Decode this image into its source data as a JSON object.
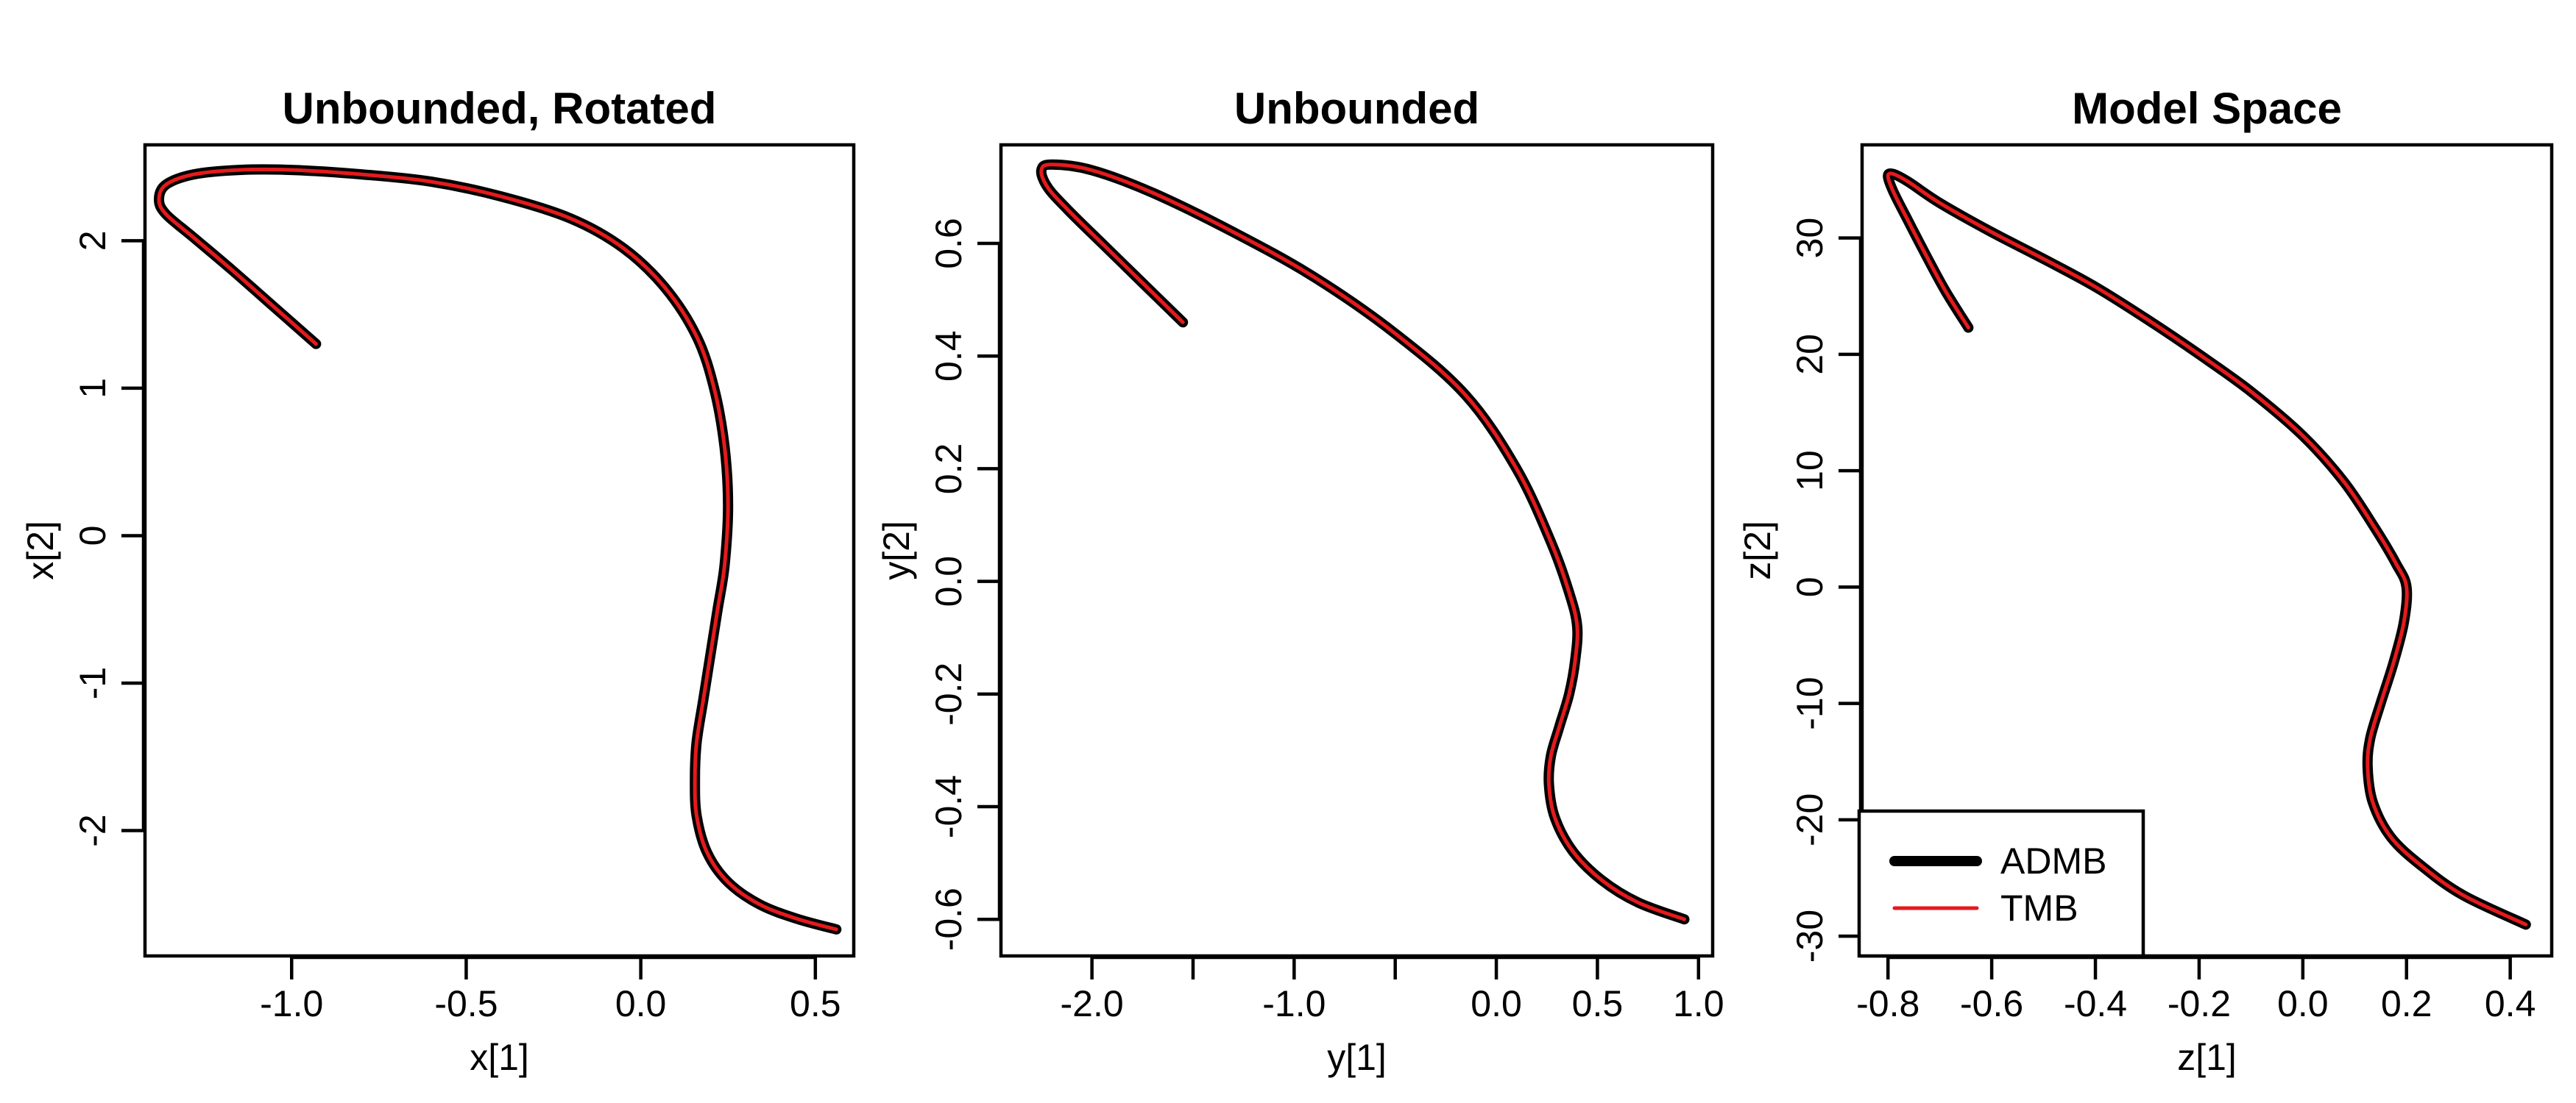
{
  "chart_data": [
    {
      "type": "line",
      "title": "Unbounded, Rotated",
      "xlabel": "x[1]",
      "ylabel": "x[2]",
      "xlim": [
        -1.42,
        0.61
      ],
      "ylim": [
        -2.85,
        2.65
      ],
      "xticks": [
        -1.0,
        -0.5,
        0.0,
        0.5
      ],
      "xtick_labels": [
        "-1.0",
        "-0.5",
        "0.0",
        "0.5"
      ],
      "yticks": [
        -2,
        -1,
        0,
        1,
        2
      ],
      "ytick_labels": [
        "-2",
        "-1",
        "0",
        "1",
        "2"
      ],
      "series": [
        {
          "name": "ADMB",
          "color": "#000000",
          "x": [
            -0.93,
            -1.05,
            -1.17,
            -1.28,
            -1.36,
            -1.38,
            -1.36,
            -1.28,
            -1.15,
            -1.0,
            -0.8,
            -0.6,
            -0.4,
            -0.2,
            -0.05,
            0.07,
            0.16,
            0.21,
            0.24,
            0.25,
            0.24,
            0.22,
            0.2,
            0.18,
            0.16,
            0.155,
            0.16,
            0.19,
            0.25,
            0.34,
            0.45,
            0.56
          ],
          "y": [
            1.3,
            1.55,
            1.8,
            2.02,
            2.18,
            2.28,
            2.38,
            2.45,
            2.48,
            2.48,
            2.45,
            2.4,
            2.3,
            2.15,
            1.95,
            1.68,
            1.35,
            1.0,
            0.6,
            0.2,
            -0.2,
            -0.5,
            -0.8,
            -1.1,
            -1.4,
            -1.65,
            -1.9,
            -2.15,
            -2.35,
            -2.5,
            -2.6,
            -2.67
          ]
        },
        {
          "name": "TMB",
          "color": "#e41a1c",
          "x": [
            -0.93,
            -1.05,
            -1.17,
            -1.28,
            -1.36,
            -1.38,
            -1.36,
            -1.28,
            -1.15,
            -1.0,
            -0.8,
            -0.6,
            -0.4,
            -0.2,
            -0.05,
            0.07,
            0.16,
            0.21,
            0.24,
            0.25,
            0.24,
            0.22,
            0.2,
            0.18,
            0.16,
            0.155,
            0.16,
            0.19,
            0.25,
            0.34,
            0.45,
            0.56
          ],
          "y": [
            1.3,
            1.55,
            1.8,
            2.02,
            2.18,
            2.28,
            2.38,
            2.45,
            2.48,
            2.48,
            2.45,
            2.4,
            2.3,
            2.15,
            1.95,
            1.68,
            1.35,
            1.0,
            0.6,
            0.2,
            -0.2,
            -0.5,
            -0.8,
            -1.1,
            -1.4,
            -1.65,
            -1.9,
            -2.15,
            -2.35,
            -2.5,
            -2.6,
            -2.67
          ]
        }
      ]
    },
    {
      "type": "line",
      "title": "Unbounded",
      "xlabel": "y[1]",
      "ylabel": "y[2]",
      "xlim": [
        -2.45,
        1.07
      ],
      "ylim": [
        -0.665,
        0.775
      ],
      "xticks": [
        -2.0,
        -1.0,
        0.0,
        0.5,
        1.0
      ],
      "xtick_labels": [
        "-2.0",
        "-1.0",
        "0.0",
        "0.5",
        "1.0"
      ],
      "xticks_minor": [
        -1.5,
        -0.5
      ],
      "yticks": [
        -0.6,
        -0.4,
        -0.2,
        0.0,
        0.2,
        0.4,
        0.6
      ],
      "ytick_labels": [
        "-0.6",
        "-0.4",
        "-0.2",
        "0.0",
        "0.2",
        "0.4",
        "0.6"
      ],
      "series": [
        {
          "name": "ADMB",
          "color": "#000000",
          "x": [
            -1.55,
            -1.75,
            -1.95,
            -2.12,
            -2.22,
            -2.25,
            -2.2,
            -2.0,
            -1.7,
            -1.3,
            -0.9,
            -0.5,
            -0.15,
            0.1,
            0.27,
            0.36,
            0.4,
            0.39,
            0.36,
            0.31,
            0.27,
            0.26,
            0.29,
            0.38,
            0.52,
            0.7,
            0.93
          ],
          "y": [
            0.46,
            0.53,
            0.6,
            0.66,
            0.7,
            0.73,
            0.74,
            0.73,
            0.69,
            0.62,
            0.54,
            0.44,
            0.33,
            0.2,
            0.07,
            -0.02,
            -0.08,
            -0.14,
            -0.2,
            -0.26,
            -0.31,
            -0.36,
            -0.42,
            -0.48,
            -0.53,
            -0.57,
            -0.6
          ]
        },
        {
          "name": "TMB",
          "color": "#e41a1c",
          "x": [
            -1.55,
            -1.75,
            -1.95,
            -2.12,
            -2.22,
            -2.25,
            -2.2,
            -2.0,
            -1.7,
            -1.3,
            -0.9,
            -0.5,
            -0.15,
            0.1,
            0.27,
            0.36,
            0.4,
            0.39,
            0.36,
            0.31,
            0.27,
            0.26,
            0.29,
            0.38,
            0.52,
            0.7,
            0.93
          ],
          "y": [
            0.46,
            0.53,
            0.6,
            0.66,
            0.7,
            0.73,
            0.74,
            0.73,
            0.69,
            0.62,
            0.54,
            0.44,
            0.33,
            0.2,
            0.07,
            -0.02,
            -0.08,
            -0.14,
            -0.2,
            -0.26,
            -0.31,
            -0.36,
            -0.42,
            -0.48,
            -0.53,
            -0.57,
            -0.6
          ]
        }
      ]
    },
    {
      "type": "line",
      "title": "Model Space",
      "xlabel": "z[1]",
      "ylabel": "z[2]",
      "xlim": [
        -0.85,
        0.48
      ],
      "ylim": [
        -31.7,
        38.0
      ],
      "xticks": [
        -0.8,
        -0.6,
        -0.4,
        -0.2,
        0.0,
        0.2,
        0.4
      ],
      "xtick_labels": [
        "-0.8",
        "-0.6",
        "-0.4",
        "-0.2",
        "0.0",
        "0.2",
        "0.4"
      ],
      "yticks": [
        -30,
        -20,
        -10,
        0,
        10,
        20,
        30
      ],
      "ytick_labels": [
        "-30",
        "-20",
        "-10",
        "0",
        "10",
        "20",
        "30"
      ],
      "series": [
        {
          "name": "ADMB",
          "color": "#000000",
          "x": [
            -0.645,
            -0.69,
            -0.73,
            -0.765,
            -0.79,
            -0.8,
            -0.79,
            -0.76,
            -0.7,
            -0.6,
            -0.5,
            -0.4,
            -0.3,
            -0.2,
            -0.1,
            0.0,
            0.08,
            0.14,
            0.18,
            0.2,
            0.195,
            0.175,
            0.15,
            0.13,
            0.125,
            0.135,
            0.17,
            0.23,
            0.31,
            0.43
          ],
          "y": [
            22.3,
            25.5,
            28.8,
            31.8,
            34.0,
            35.3,
            35.5,
            34.8,
            33.0,
            30.5,
            28.2,
            25.8,
            23.0,
            20.0,
            16.8,
            13.0,
            9.0,
            5.0,
            2.0,
            0.0,
            -3.0,
            -6.5,
            -10.0,
            -13.0,
            -15.5,
            -18.5,
            -21.5,
            -24.0,
            -26.5,
            -29.0
          ]
        },
        {
          "name": "TMB",
          "color": "#e41a1c",
          "x": [
            -0.645,
            -0.69,
            -0.73,
            -0.765,
            -0.79,
            -0.8,
            -0.79,
            -0.76,
            -0.7,
            -0.6,
            -0.5,
            -0.4,
            -0.3,
            -0.2,
            -0.1,
            0.0,
            0.08,
            0.14,
            0.18,
            0.2,
            0.195,
            0.175,
            0.15,
            0.13,
            0.125,
            0.135,
            0.17,
            0.23,
            0.31,
            0.43
          ],
          "y": [
            22.3,
            25.5,
            28.8,
            31.8,
            34.0,
            35.3,
            35.5,
            34.8,
            33.0,
            30.5,
            28.2,
            25.8,
            23.0,
            20.0,
            16.8,
            13.0,
            9.0,
            5.0,
            2.0,
            0.0,
            -3.0,
            -6.5,
            -10.0,
            -13.0,
            -15.5,
            -18.5,
            -21.5,
            -24.0,
            -26.5,
            -29.0
          ]
        }
      ],
      "legend": {
        "position": "bottom-left",
        "entries": [
          {
            "label": "ADMB",
            "color": "#000000"
          },
          {
            "label": "TMB",
            "color": "#e41a1c"
          }
        ]
      }
    }
  ]
}
